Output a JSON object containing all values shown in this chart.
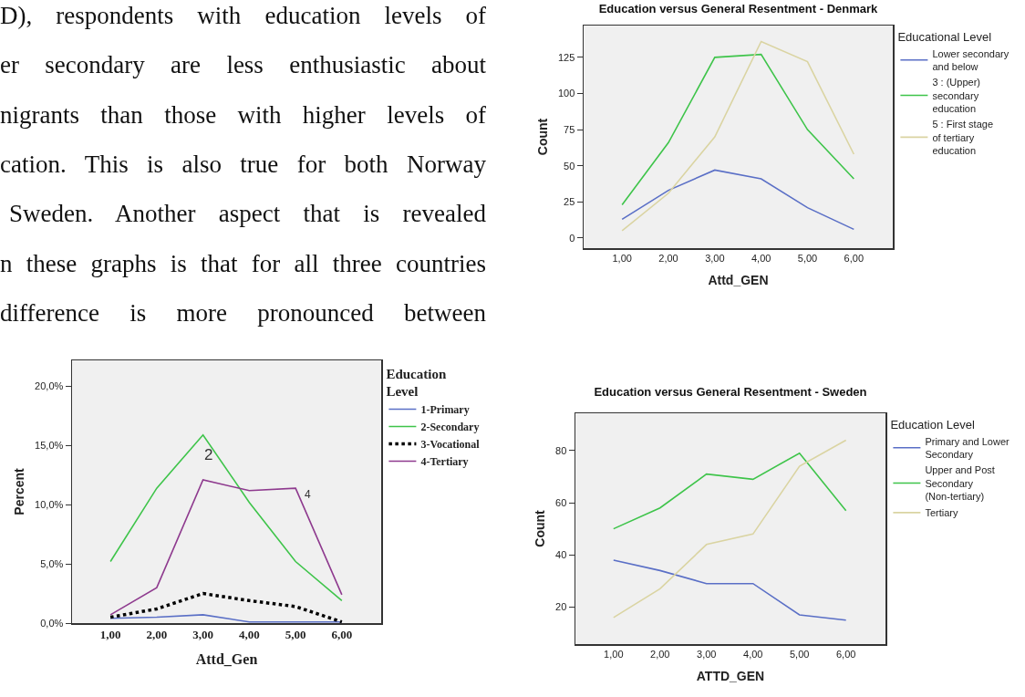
{
  "chart_data": [
    {
      "type": "other",
      "annotations": [
        "D), respondents with education levels of",
        "er secondary are less enthusiastic about",
        "nigrants than those with higher levels of",
        "cation. This is also true for both Norway",
        "Sweden. Another aspect that is revealed",
        "n these graphs is that for all three countries",
        "difference is more pronounced between"
      ]
    },
    {
      "type": "line",
      "title": "Education versus General Resentment - Denmark",
      "xlabel": "Attd_GEN",
      "ylabel": "Count",
      "legend_title": "Educational Level",
      "legend": "right",
      "x": [
        1,
        2,
        3,
        4,
        5,
        6
      ],
      "xlim": [
        0.17,
        6.84
      ],
      "xticks": [
        {
          "value": 1,
          "label": "1,00"
        },
        {
          "value": 2,
          "label": "2,00"
        },
        {
          "value": 3,
          "label": "3,00"
        },
        {
          "value": 4,
          "label": "4,00"
        },
        {
          "value": 5,
          "label": "5,00"
        },
        {
          "value": 6,
          "label": "6,00"
        }
      ],
      "ylim": [
        -7,
        147
      ],
      "yticks": [
        0,
        25,
        50,
        75,
        100,
        125
      ],
      "grid": false,
      "series": [
        {
          "name": "Lower secondary and below",
          "color": "#5a6fc6",
          "values": [
            13,
            33,
            47,
            41,
            21,
            6
          ]
        },
        {
          "name": "3 : (Upper) secondary education",
          "color": "#3ec44a",
          "values": [
            23,
            66,
            125,
            127,
            75,
            41
          ]
        },
        {
          "name": "5 : First stage of tertiary education",
          "color": "#dad4a2",
          "values": [
            5,
            31,
            70,
            136,
            122,
            58
          ]
        }
      ]
    },
    {
      "type": "line",
      "xlabel": "Attd_Gen",
      "ylabel": "Percent",
      "legend_title": "Education Level",
      "legend": "right",
      "x": [
        1,
        2,
        3,
        4,
        5,
        6
      ],
      "xlim": [
        0.17,
        6.85
      ],
      "xticks": [
        {
          "value": 1,
          "label": "1,00"
        },
        {
          "value": 2,
          "label": "2,00"
        },
        {
          "value": 3,
          "label": "3,00"
        },
        {
          "value": 4,
          "label": "4,00"
        },
        {
          "value": 5,
          "label": "5,00"
        },
        {
          "value": 6,
          "label": "6,00"
        }
      ],
      "ylim": [
        0,
        22.2
      ],
      "yticks": [
        {
          "value": 0,
          "label": "0,0%"
        },
        {
          "value": 5,
          "label": "5,0%"
        },
        {
          "value": 10,
          "label": "10,0%"
        },
        {
          "value": 15,
          "label": "15,0%"
        },
        {
          "value": 20,
          "label": "20,0%"
        }
      ],
      "grid": false,
      "annotations": [
        "2",
        "4"
      ],
      "series": [
        {
          "name": "1-Primary",
          "color": "#5a6fc6",
          "values": [
            0.4,
            0.5,
            0.7,
            0.1,
            0.1,
            0.1
          ]
        },
        {
          "name": "2-Secondary",
          "color": "#3ec44a",
          "values": [
            5.2,
            11.4,
            15.9,
            10.2,
            5.2,
            1.9
          ]
        },
        {
          "name": "3-Vocational",
          "color": "#000000",
          "line_style": "dotted",
          "values": [
            0.5,
            1.2,
            2.5,
            1.9,
            1.4,
            0.1
          ]
        },
        {
          "name": "4-Tertiary",
          "color": "#8e3a8e",
          "values": [
            0.7,
            3.0,
            12.1,
            11.2,
            11.4,
            2.4
          ]
        }
      ]
    },
    {
      "type": "line",
      "title": "Education versus General Resentment - Sweden",
      "xlabel": "ATTD_GEN",
      "ylabel": "Count",
      "legend_title": "Education Level",
      "legend": "right",
      "x": [
        1,
        2,
        3,
        4,
        5,
        6
      ],
      "xlim": [
        0.18,
        6.85
      ],
      "xticks": [
        {
          "value": 1,
          "label": "1,00"
        },
        {
          "value": 2,
          "label": "2,00"
        },
        {
          "value": 3,
          "label": "3,00"
        },
        {
          "value": 4,
          "label": "4,00"
        },
        {
          "value": 5,
          "label": "5,00"
        },
        {
          "value": 6,
          "label": "6,00"
        }
      ],
      "ylim": [
        5.8,
        94.3
      ],
      "yticks": [
        20,
        40,
        60,
        80
      ],
      "grid": false,
      "series": [
        {
          "name": "Primary and Lower Secondary",
          "color": "#5a6fc6",
          "values": [
            38,
            34,
            29,
            29,
            17,
            15
          ]
        },
        {
          "name": "Upper and Post Secondary (Non-tertiary)",
          "color": "#3ec44a",
          "values": [
            50,
            58,
            71,
            69,
            79,
            57
          ]
        },
        {
          "name": "Tertiary",
          "color": "#dad4a2",
          "values": [
            16,
            27,
            44,
            48,
            74,
            84
          ]
        }
      ]
    }
  ]
}
